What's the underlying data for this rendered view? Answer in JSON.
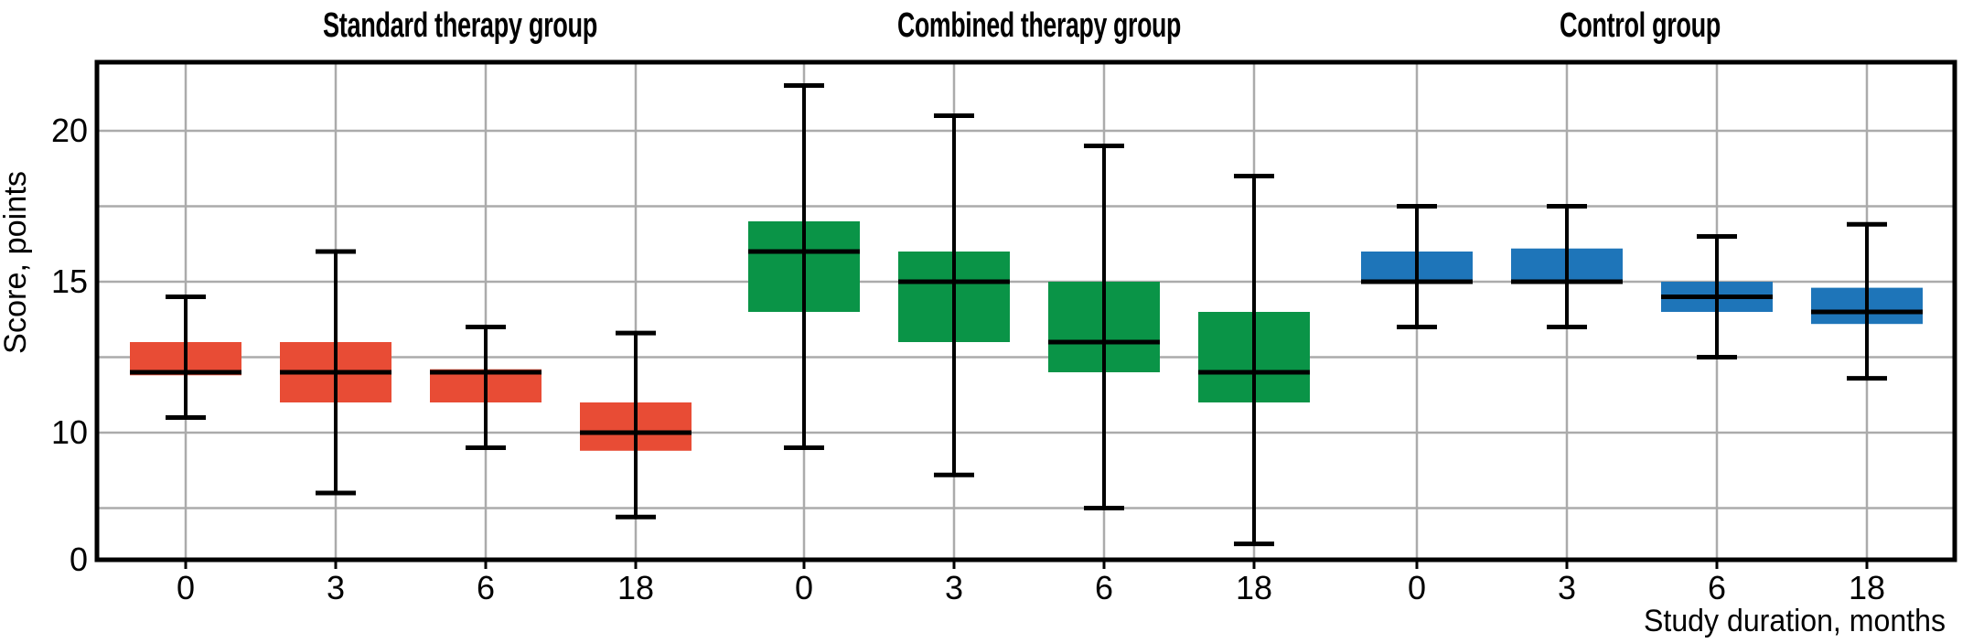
{
  "figure": {
    "y_axis_label": "Score, points",
    "x_axis_label": "Study duration, months"
  },
  "y_axis": {
    "tick_labels": [
      "0",
      "10",
      "15",
      "20"
    ],
    "tick_values": [
      0,
      10,
      15,
      20
    ],
    "gridline_values": [
      7.5,
      10,
      12.5,
      15,
      17.5,
      20
    ],
    "scale_break_below": 7.5,
    "top_value": 22.3,
    "gridline_color": "#ABABAB"
  },
  "x_axis": {
    "month_labels": [
      "0",
      "3",
      "6",
      "18"
    ]
  },
  "chart_data": {
    "type": "boxplot",
    "xlabel": "Study duration, months",
    "ylabel": "Score, points",
    "categories_per_group": [
      "0",
      "3",
      "6",
      "18"
    ],
    "groups": [
      {
        "name": "Standard therapy group",
        "color": "#E84C35",
        "boxes": [
          {
            "month": "0",
            "low": 10.5,
            "q1": 11.9,
            "median": 12.0,
            "q3": 13.0,
            "high": 14.5
          },
          {
            "month": "3",
            "low": 8.0,
            "q1": 11.0,
            "median": 12.0,
            "q3": 13.0,
            "high": 16.0
          },
          {
            "month": "6",
            "low": 9.5,
            "q1": 11.0,
            "median": 12.0,
            "q3": 12.1,
            "high": 13.5
          },
          {
            "month": "18",
            "low": 6.2,
            "q1": 9.4,
            "median": 10.0,
            "q3": 11.0,
            "high": 13.3
          }
        ]
      },
      {
        "name": "Combined therapy group",
        "color": "#0A9447",
        "boxes": [
          {
            "month": "0",
            "low": 9.5,
            "q1": 14.0,
            "median": 16.0,
            "q3": 17.0,
            "high": 21.5
          },
          {
            "month": "3",
            "low": 8.6,
            "q1": 13.0,
            "median": 15.0,
            "q3": 16.0,
            "high": 20.5
          },
          {
            "month": "6",
            "low": 7.5,
            "q1": 12.0,
            "median": 13.0,
            "q3": 15.0,
            "high": 19.5
          },
          {
            "month": "18",
            "low": 2.3,
            "q1": 11.0,
            "median": 12.0,
            "q3": 14.0,
            "high": 18.5
          }
        ]
      },
      {
        "name": "Control group",
        "color": "#1E75B9",
        "boxes": [
          {
            "month": "0",
            "low": 13.5,
            "q1": 15.0,
            "median": 15.0,
            "q3": 16.0,
            "high": 17.5
          },
          {
            "month": "3",
            "low": 13.5,
            "q1": 15.0,
            "median": 15.0,
            "q3": 16.1,
            "high": 17.5
          },
          {
            "month": "6",
            "low": 12.5,
            "q1": 14.0,
            "median": 14.5,
            "q3": 15.0,
            "high": 16.5
          },
          {
            "month": "18",
            "low": 11.8,
            "q1": 13.6,
            "median": 14.0,
            "q3": 14.8,
            "high": 16.9
          }
        ]
      }
    ]
  }
}
